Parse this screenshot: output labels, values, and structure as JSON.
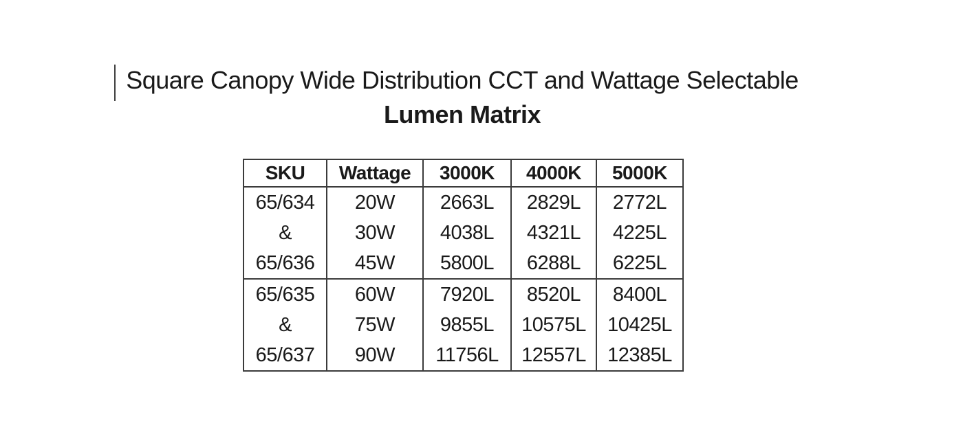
{
  "document": {
    "title": "Square Canopy Wide Distribution CCT and Wattage Selectable",
    "subtitle": "Lumen Matrix"
  },
  "table": {
    "columns": [
      "SKU",
      "Wattage",
      "3000K",
      "4000K",
      "5000K"
    ],
    "groups": [
      {
        "sku_lines": [
          "65/634",
          "&",
          "65/636"
        ],
        "rows": [
          {
            "wattage": "20W",
            "lumens_3000k": "2663L",
            "lumens_4000k": "2829L",
            "lumens_5000k": "2772L"
          },
          {
            "wattage": "30W",
            "lumens_3000k": "4038L",
            "lumens_4000k": "4321L",
            "lumens_5000k": "4225L"
          },
          {
            "wattage": "45W",
            "lumens_3000k": "5800L",
            "lumens_4000k": "6288L",
            "lumens_5000k": "6225L"
          }
        ]
      },
      {
        "sku_lines": [
          "65/635",
          "&",
          "65/637"
        ],
        "rows": [
          {
            "wattage": "60W",
            "lumens_3000k": "7920L",
            "lumens_4000k": "8520L",
            "lumens_5000k": "8400L"
          },
          {
            "wattage": "75W",
            "lumens_3000k": "9855L",
            "lumens_4000k": "10575L",
            "lumens_5000k": "10425L"
          },
          {
            "wattage": "90W",
            "lumens_3000k": "11756L",
            "lumens_4000k": "12557L",
            "lumens_5000k": "12385L"
          }
        ]
      }
    ]
  },
  "colors": {
    "text": "#1a1a1a",
    "table_border": "#3b3b3b",
    "background": "#ffffff"
  }
}
